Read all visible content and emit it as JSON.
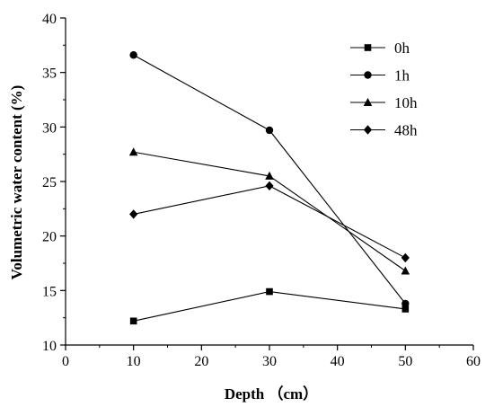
{
  "chart_data": {
    "type": "line",
    "xlabel": "Depth （cm）",
    "ylabel": "Volumetric water content (%)",
    "xlim": [
      0,
      60
    ],
    "ylim": [
      10,
      40
    ],
    "xticks": [
      0,
      10,
      20,
      30,
      40,
      50,
      60
    ],
    "yticks": [
      10,
      15,
      20,
      25,
      30,
      35,
      40
    ],
    "grid": false,
    "legend_position": "top-right",
    "x": [
      10,
      30,
      50
    ],
    "series": [
      {
        "name": "0h",
        "marker": "square",
        "values": [
          12.2,
          14.9,
          13.3
        ]
      },
      {
        "name": "1h",
        "marker": "circle",
        "values": [
          36.6,
          29.7,
          13.8
        ]
      },
      {
        "name": "10h",
        "marker": "triangle",
        "values": [
          27.7,
          25.5,
          16.8
        ]
      },
      {
        "name": "48h",
        "marker": "diamond",
        "values": [
          22.0,
          24.6,
          18.0
        ]
      }
    ],
    "colors": {
      "line": "#000000",
      "marker": "#000000",
      "axis": "#000000"
    }
  }
}
